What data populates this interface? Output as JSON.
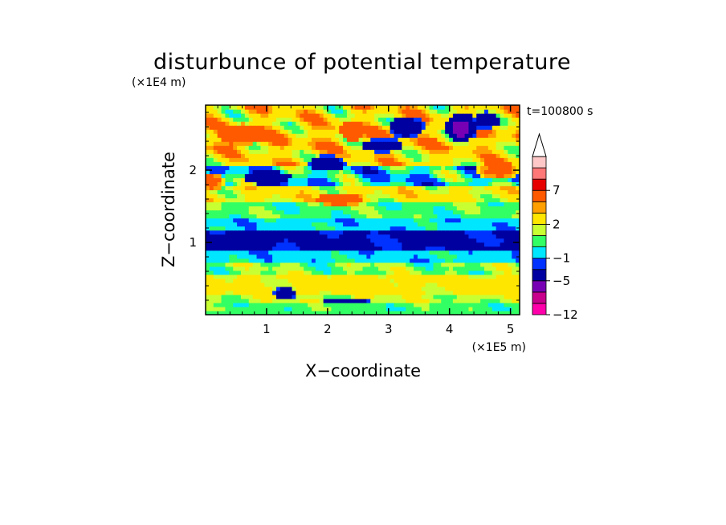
{
  "chart_data": {
    "type": "heatmap",
    "title": "disturbunce of potential temperature",
    "xlabel": "X−coordinate",
    "ylabel": "Z−coordinate",
    "x_unit": "(×1E5 m)",
    "y_unit": "(×1E4 m)",
    "time_label": "t=100800  s",
    "xlim": [
      0,
      5.15
    ],
    "ylim": [
      0,
      2.9
    ],
    "x_ticks": [
      1,
      2,
      3,
      4,
      5
    ],
    "x_tick_labels": [
      "1",
      "2",
      "3",
      "4",
      "5"
    ],
    "y_ticks": [
      1,
      2
    ],
    "y_tick_labels": [
      "1",
      "2"
    ],
    "colorbar": {
      "levels": [
        -12,
        -10,
        -7,
        -5,
        -3,
        -1,
        0,
        1,
        2,
        4,
        5,
        7,
        9,
        11
      ],
      "labels": [
        {
          "value": -12,
          "text": "−12"
        },
        {
          "value": -5,
          "text": "−5"
        },
        {
          "value": -1,
          "text": "−1"
        },
        {
          "value": 2,
          "text": "2"
        },
        {
          "value": 7,
          "text": "7"
        }
      ],
      "colors": [
        "#ff00aa",
        "#c8008c",
        "#7800b4",
        "#0000a0",
        "#0032ff",
        "#00e6ff",
        "#32ff64",
        "#c8ff32",
        "#ffe600",
        "#ffa000",
        "#ff5a00",
        "#e60000",
        "#ff7878",
        "#ffc8c8"
      ],
      "extend_top_color": "#ffffff"
    },
    "bands": [
      {
        "z0": 0.0,
        "z1": 0.05,
        "value": 0.5
      },
      {
        "z0": 0.05,
        "z1": 0.15,
        "value": 0.5,
        "var": 0.8
      },
      {
        "z0": 0.15,
        "z1": 0.3,
        "value": 1.5,
        "var": 1.2
      },
      {
        "z0": 0.3,
        "z1": 0.55,
        "value": 2.5,
        "var": 1.5
      },
      {
        "z0": 0.55,
        "z1": 0.7,
        "value": 1.0,
        "var": 1.5
      },
      {
        "z0": 0.7,
        "z1": 0.9,
        "value": -0.5,
        "var": 0.8
      },
      {
        "z0": 0.9,
        "z1": 1.15,
        "value": -3.5,
        "var": 1.5
      },
      {
        "z0": 1.15,
        "z1": 1.35,
        "value": -0.5,
        "var": 0.8
      },
      {
        "z0": 1.35,
        "z1": 1.55,
        "value": 0.5,
        "var": 1.0
      },
      {
        "z0": 1.55,
        "z1": 1.8,
        "value": 2.5,
        "var": 2.0
      },
      {
        "z0": 1.8,
        "z1": 2.05,
        "value": -0.5,
        "var": 3.0
      },
      {
        "z0": 2.05,
        "z1": 2.3,
        "value": 3.0,
        "var": 3.0
      },
      {
        "z0": 2.3,
        "z1": 2.6,
        "value": 3.5,
        "var": 3.5
      },
      {
        "z0": 2.6,
        "z1": 2.9,
        "value": 3.0,
        "var": 3.5
      }
    ],
    "features": [
      {
        "x": 4.2,
        "z": 2.6,
        "rx": 0.18,
        "rz": 0.12,
        "value": -10
      },
      {
        "x": 4.2,
        "z": 2.6,
        "rx": 0.28,
        "rz": 0.2,
        "value": -6
      },
      {
        "x": 4.6,
        "z": 2.7,
        "rx": 0.22,
        "rz": 0.12,
        "value": -5
      },
      {
        "x": 3.3,
        "z": 2.6,
        "rx": 0.3,
        "rz": 0.15,
        "value": -5
      },
      {
        "x": 2.9,
        "z": 2.35,
        "rx": 0.35,
        "rz": 0.1,
        "value": -5
      },
      {
        "x": 2.0,
        "z": 2.1,
        "rx": 0.3,
        "rz": 0.12,
        "value": -5
      },
      {
        "x": 1.0,
        "z": 1.9,
        "rx": 0.4,
        "rz": 0.1,
        "value": -5
      },
      {
        "x": 2.4,
        "z": 2.55,
        "rx": 0.2,
        "rz": 0.15,
        "value": 7
      },
      {
        "x": 0.6,
        "z": 2.5,
        "rx": 0.4,
        "rz": 0.15,
        "value": 6
      },
      {
        "x": 4.8,
        "z": 2.0,
        "rx": 0.35,
        "rz": 0.12,
        "value": 6
      },
      {
        "x": 2.2,
        "z": 1.6,
        "rx": 0.4,
        "rz": 0.1,
        "value": 6
      },
      {
        "x": 0.1,
        "z": 1.85,
        "rx": 0.2,
        "rz": 0.12,
        "value": 6
      },
      {
        "x": 1.3,
        "z": 0.3,
        "rx": 0.2,
        "rz": 0.08,
        "value": -5
      },
      {
        "x": 2.3,
        "z": 0.2,
        "rx": 0.4,
        "rz": 0.05,
        "value": -5
      },
      {
        "x": 2.5,
        "z": 0.4,
        "rx": 0.6,
        "rz": 0.15,
        "value": 3
      },
      {
        "x": 4.5,
        "z": 0.4,
        "rx": 0.4,
        "rz": 0.12,
        "value": 3
      },
      {
        "x": 0.7,
        "z": 1.05,
        "rx": 0.6,
        "rz": 0.12,
        "value": -5
      },
      {
        "x": 3.8,
        "z": 1.05,
        "rx": 0.5,
        "rz": 0.1,
        "value": -5
      }
    ]
  }
}
